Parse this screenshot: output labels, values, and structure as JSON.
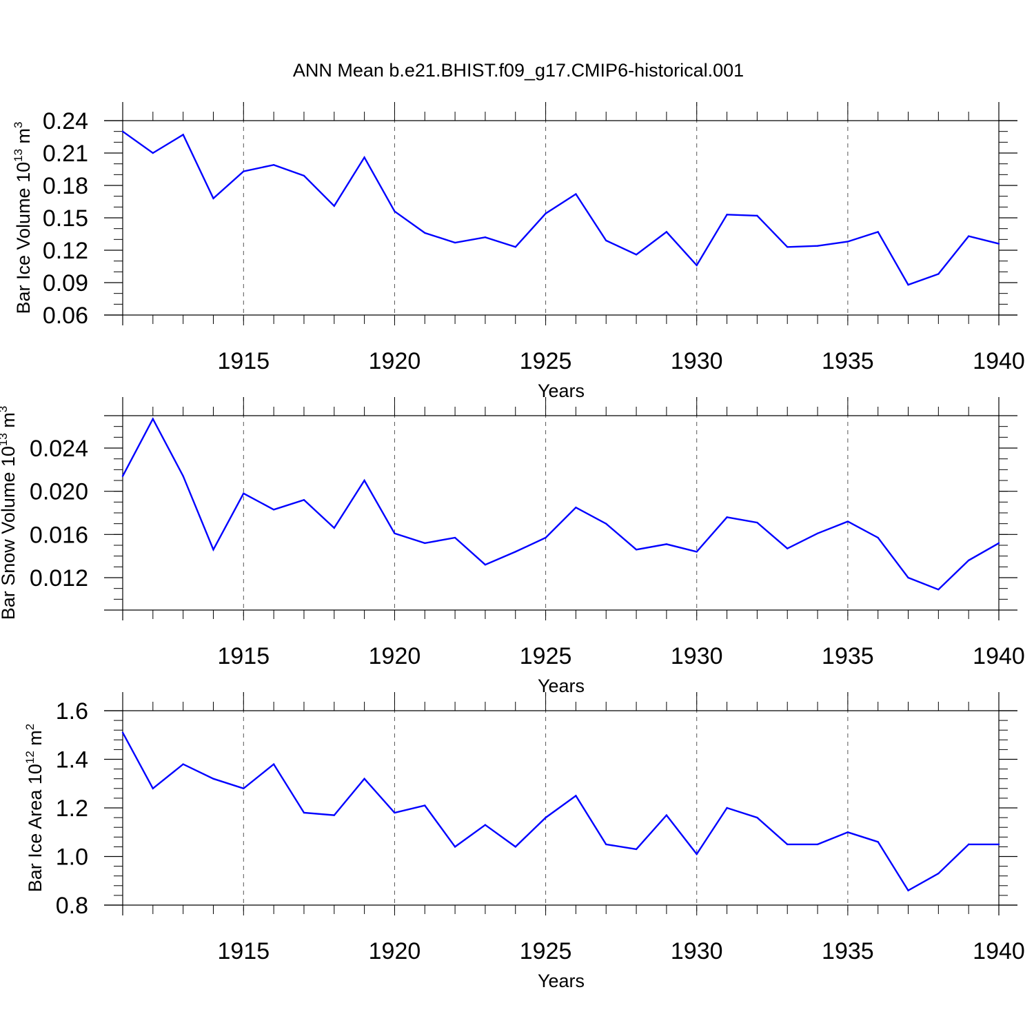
{
  "title": "ANN Mean b.e21.BHIST.f09_g17.CMIP6-historical.001",
  "colors": {
    "line": "#0000ff",
    "axis": "#000000",
    "grid": "#555555"
  },
  "chart_data": [
    {
      "type": "line",
      "ylabel": {
        "text": "Bar Ice Volume 10",
        "exp": "13",
        "unit": " m",
        "unit_exp": "3"
      },
      "xlabel": "Years",
      "xlim": [
        1911,
        1940
      ],
      "ylim": [
        0.06,
        0.24
      ],
      "yticks": [
        0.06,
        0.09,
        0.12,
        0.15,
        0.18,
        0.21,
        0.24
      ],
      "ytick_labels": [
        "0.06",
        "0.09",
        "0.12",
        "0.15",
        "0.18",
        "0.21",
        "0.24"
      ],
      "yminor_step": 0.01,
      "xticks": [
        1915,
        1920,
        1925,
        1930,
        1935,
        1940
      ],
      "xtick_labels": [
        "1915",
        "1920",
        "1925",
        "1930",
        "1935",
        "1940"
      ],
      "grid": "vertical dashed at labeled years",
      "x": [
        1911,
        1912,
        1913,
        1914,
        1915,
        1916,
        1917,
        1918,
        1919,
        1920,
        1921,
        1922,
        1923,
        1924,
        1925,
        1926,
        1927,
        1928,
        1929,
        1930,
        1931,
        1932,
        1933,
        1934,
        1935,
        1936,
        1937,
        1938,
        1939,
        1940
      ],
      "values": [
        0.23,
        0.21,
        0.227,
        0.168,
        0.193,
        0.199,
        0.189,
        0.161,
        0.206,
        0.156,
        0.136,
        0.127,
        0.132,
        0.123,
        0.154,
        0.172,
        0.129,
        0.116,
        0.137,
        0.106,
        0.153,
        0.152,
        0.123,
        0.124,
        0.128,
        0.137,
        0.088,
        0.098,
        0.133,
        0.126
      ]
    },
    {
      "type": "line",
      "ylabel": {
        "text": "Bar Snow Volume 10",
        "exp": "13",
        "unit": " m",
        "unit_exp": "3"
      },
      "xlabel": "Years",
      "xlim": [
        1911,
        1940
      ],
      "ylim": [
        0.009,
        0.027
      ],
      "yticks": [
        0.012,
        0.016,
        0.02,
        0.024
      ],
      "ytick_labels": [
        "0.012",
        "0.016",
        "0.020",
        "0.024"
      ],
      "yminor_step": 0.001,
      "xticks": [
        1915,
        1920,
        1925,
        1930,
        1935,
        1940
      ],
      "xtick_labels": [
        "1915",
        "1920",
        "1925",
        "1930",
        "1935",
        "1940"
      ],
      "grid": "vertical dashed at labeled years",
      "x": [
        1911,
        1912,
        1913,
        1914,
        1915,
        1916,
        1917,
        1918,
        1919,
        1920,
        1921,
        1922,
        1923,
        1924,
        1925,
        1926,
        1927,
        1928,
        1929,
        1930,
        1931,
        1932,
        1933,
        1934,
        1935,
        1936,
        1937,
        1938,
        1939,
        1940
      ],
      "values": [
        0.0214,
        0.0267,
        0.0214,
        0.0146,
        0.0198,
        0.0183,
        0.0192,
        0.0166,
        0.021,
        0.0161,
        0.0152,
        0.0157,
        0.0132,
        0.0144,
        0.0157,
        0.0185,
        0.017,
        0.0146,
        0.0151,
        0.0144,
        0.0176,
        0.0171,
        0.0147,
        0.0161,
        0.0172,
        0.0157,
        0.012,
        0.0109,
        0.0136,
        0.0152
      ]
    },
    {
      "type": "line",
      "ylabel": {
        "text": "Bar Ice Area 10",
        "exp": "12",
        "unit": " m",
        "unit_exp": "2"
      },
      "xlabel": "Years",
      "xlim": [
        1911,
        1940
      ],
      "ylim": [
        0.8,
        1.6
      ],
      "yticks": [
        0.8,
        1.0,
        1.2,
        1.4,
        1.6
      ],
      "ytick_labels": [
        "0.8",
        "1.0",
        "1.2",
        "1.4",
        "1.6"
      ],
      "yminor_step": 0.04,
      "xticks": [
        1915,
        1920,
        1925,
        1930,
        1935,
        1940
      ],
      "xtick_labels": [
        "1915",
        "1920",
        "1925",
        "1930",
        "1935",
        "1940"
      ],
      "grid": "vertical dashed at labeled years",
      "x": [
        1911,
        1912,
        1913,
        1914,
        1915,
        1916,
        1917,
        1918,
        1919,
        1920,
        1921,
        1922,
        1923,
        1924,
        1925,
        1926,
        1927,
        1928,
        1929,
        1930,
        1931,
        1932,
        1933,
        1934,
        1935,
        1936,
        1937,
        1938,
        1939,
        1940
      ],
      "values": [
        1.51,
        1.28,
        1.38,
        1.32,
        1.28,
        1.38,
        1.18,
        1.17,
        1.32,
        1.18,
        1.21,
        1.04,
        1.13,
        1.04,
        1.16,
        1.25,
        1.05,
        1.03,
        1.17,
        1.01,
        1.2,
        1.16,
        1.05,
        1.05,
        1.1,
        1.06,
        0.86,
        0.93,
        1.05,
        1.05
      ]
    }
  ]
}
